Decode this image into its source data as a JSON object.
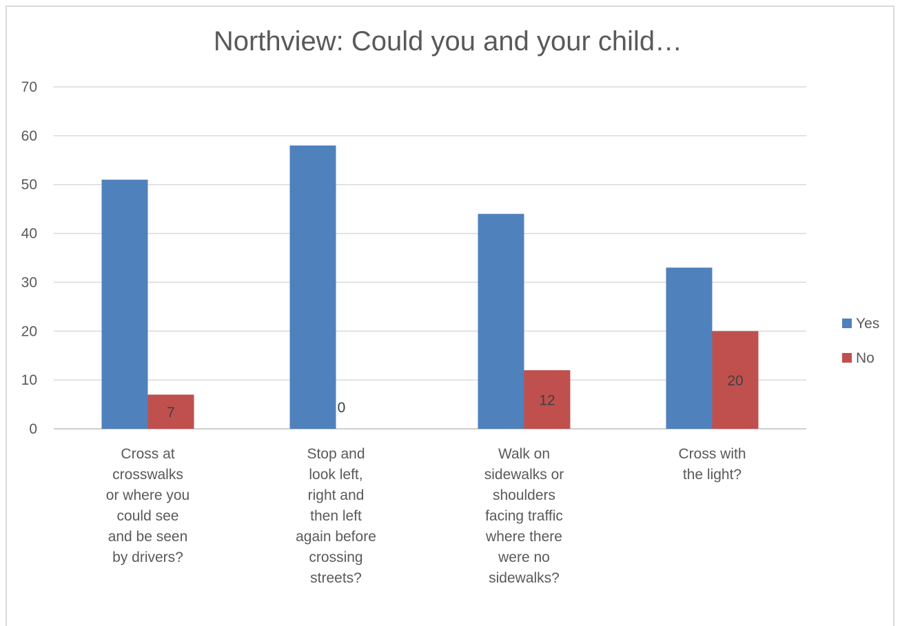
{
  "chart_data": {
    "type": "bar",
    "title": "Northview: Could you and your child…",
    "xlabel": "",
    "ylabel": "",
    "ylim": [
      0,
      70
    ],
    "yticks": [
      0,
      10,
      20,
      30,
      40,
      50,
      60,
      70
    ],
    "grid": true,
    "legend_position": "right",
    "categories": [
      [
        "Cross at",
        "crosswalks",
        "or where you",
        "could see",
        "and be seen",
        "by drivers?"
      ],
      [
        "Stop and",
        "look left,",
        "right and",
        "then left",
        "again before",
        "crossing",
        "streets?"
      ],
      [
        "Walk on",
        "sidewalks or",
        "shoulders",
        "facing traffic",
        "where there",
        "were no",
        "sidewalks?"
      ],
      [
        "Cross with",
        "the light?"
      ]
    ],
    "series": [
      {
        "name": "Yes",
        "color": "#4f81bd",
        "values": [
          51,
          58,
          44,
          33
        ],
        "show_labels": false
      },
      {
        "name": "No",
        "color": "#c0504d",
        "values": [
          7,
          0,
          12,
          20
        ],
        "show_labels": true
      }
    ]
  }
}
